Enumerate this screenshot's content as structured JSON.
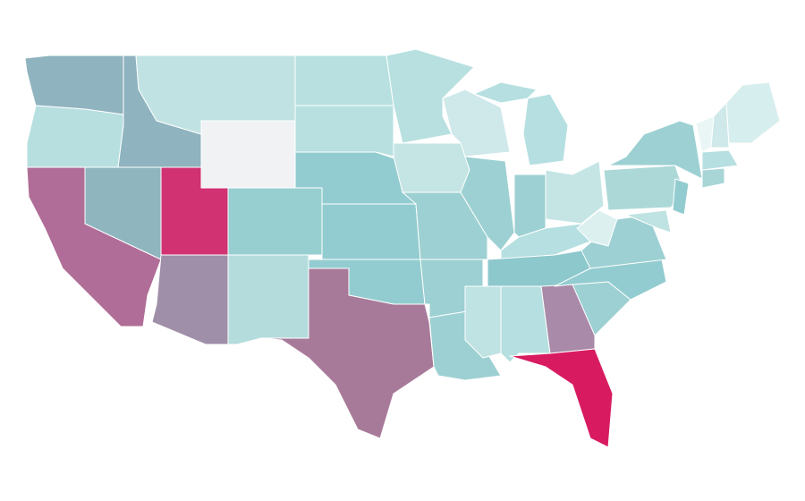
{
  "map": {
    "regions": [
      {
        "color": "#8fb3bf"
      },
      {
        "color": "#b8dfe0"
      },
      {
        "color": "#b06d97"
      },
      {
        "color": "#8fb3bf"
      },
      {
        "color": "#8fb5bf"
      },
      {
        "color": "#c1e2e2"
      },
      {
        "color": "#f0f2f4"
      },
      {
        "color": "#d03272"
      },
      {
        "color": "#a08fa8"
      },
      {
        "color": "#97cfd1"
      },
      {
        "color": "#b4dcdc"
      },
      {
        "color": "#b8e0e0"
      },
      {
        "color": "#b8e0e0"
      },
      {
        "color": "#93ccd0"
      },
      {
        "color": "#93ccd0"
      },
      {
        "color": "#93ccd0"
      },
      {
        "color": "#a87a9a"
      },
      {
        "color": "#b8e0e0"
      },
      {
        "color": "#c5e5e5"
      },
      {
        "color": "#9dd0d2"
      },
      {
        "color": "#9dd0d2"
      },
      {
        "color": "#9dd0d2"
      },
      {
        "color": "#cfe8ea"
      },
      {
        "color": "#9dd0d2"
      },
      {
        "color": "#b5dfe0"
      },
      {
        "color": "#9dd0d2"
      },
      {
        "color": "#c5e5e5"
      },
      {
        "color": "#b5dfe0"
      },
      {
        "color": "#8cc8cc"
      },
      {
        "color": "#bfe2e2"
      },
      {
        "color": "#b5dfe0"
      },
      {
        "color": "#a98aa8"
      },
      {
        "color": "#d81b60"
      },
      {
        "color": "#9dd0d2"
      },
      {
        "color": "#93ccd0"
      },
      {
        "color": "#9dd0d2"
      },
      {
        "color": "#dcf0f0"
      },
      {
        "color": "#add8d8"
      },
      {
        "color": "#9dd0d2"
      },
      {
        "color": "#93ccd0"
      },
      {
        "color": "#bfe2e2"
      },
      {
        "color": "#eaf6f6"
      },
      {
        "color": "#cfe8ea"
      },
      {
        "color": "#d7eeee"
      },
      {
        "color": "#b5dfe0"
      },
      {
        "color": "#a8d6d6"
      },
      {
        "color": "#b5dfe0"
      }
    ]
  }
}
